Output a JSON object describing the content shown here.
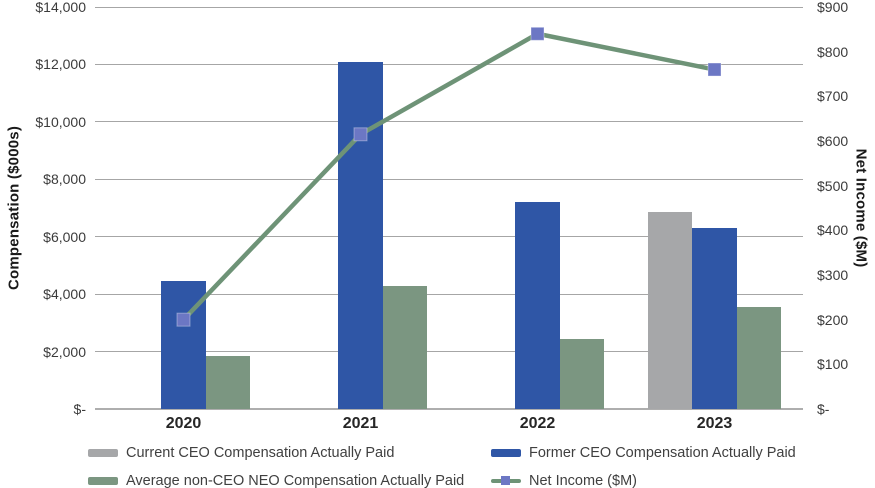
{
  "chart_data": {
    "type": "bar+line",
    "categories": [
      "2020",
      "2021",
      "2022",
      "2023"
    ],
    "series": [
      {
        "name": "Current CEO Compensation Actually Paid",
        "type": "bar",
        "axis": "left",
        "color": "#A6A7A9",
        "values": [
          null,
          null,
          null,
          6850
        ]
      },
      {
        "name": "Former CEO Compensation Actually Paid",
        "type": "bar",
        "axis": "left",
        "color": "#2F56A6",
        "values": [
          4450,
          12100,
          7200,
          6300
        ]
      },
      {
        "name": "Average non-CEO NEO Compensation Actually Paid",
        "type": "bar",
        "axis": "left",
        "color": "#7B9681",
        "values": [
          1850,
          4300,
          2450,
          3550
        ]
      },
      {
        "name": "Net Income ($M)",
        "type": "line",
        "axis": "right",
        "color": "#6E9377",
        "marker_color": "#6C77C4",
        "values": [
          200,
          615,
          840,
          760
        ]
      }
    ],
    "left_axis": {
      "label": "Compensation ($000s)",
      "min": 0,
      "max": 14000,
      "step": 2000,
      "tick_labels": [
        "$14,000",
        "$12,000",
        "$10,000",
        "$8,000",
        "$6,000",
        "$4,000",
        "$2,000",
        "$-"
      ]
    },
    "right_axis": {
      "label": "Net Income ($M)",
      "min": 0,
      "max": 900,
      "step": 100,
      "tick_labels": [
        "$900",
        "$800",
        "$700",
        "$600",
        "$500",
        "$400",
        "$300",
        "$200",
        "$100",
        "$-"
      ]
    },
    "grid": true,
    "legend_position": "bottom",
    "title": "",
    "xlabel": "",
    "ylabel": "Compensation ($000s)",
    "y2label": "Net Income ($M)"
  }
}
